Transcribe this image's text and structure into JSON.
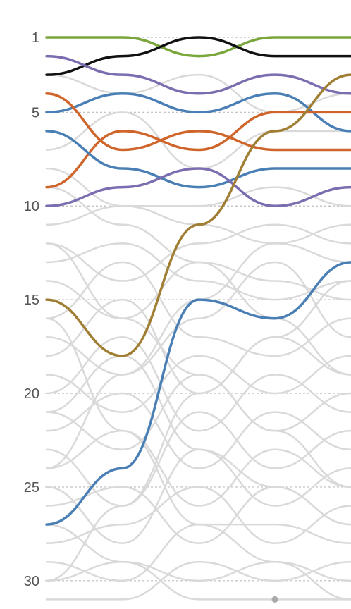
{
  "chart_data": {
    "type": "line",
    "subtype": "bump",
    "y_axis": {
      "reversed": true,
      "range": [
        0,
        30.5
      ],
      "ticks": [
        1,
        5,
        10,
        15,
        20,
        25,
        30
      ],
      "tick_labels": [
        "1",
        "5",
        "10",
        "15",
        "20",
        "25",
        "30"
      ]
    },
    "x": [
      1,
      2,
      3,
      4,
      5
    ],
    "grid": {
      "horizontal": true,
      "style": "dotted"
    },
    "highlighted_series": [
      {
        "color": "#7aa63c",
        "ranks": [
          1,
          1,
          2,
          1,
          1
        ]
      },
      {
        "color": "#111111",
        "ranks": [
          3,
          2,
          1,
          2,
          2
        ]
      },
      {
        "color": "#7b6db0",
        "ranks": [
          2,
          3,
          4,
          3,
          4
        ]
      },
      {
        "color": "#4a7fb5",
        "ranks": [
          5,
          4,
          5,
          4,
          6
        ]
      },
      {
        "color": "#d0652b",
        "ranks": [
          4,
          7,
          6,
          7,
          7
        ]
      },
      {
        "color": "#d0652b",
        "ranks": [
          9,
          6,
          7,
          5,
          5
        ]
      },
      {
        "color": "#4a7fb5",
        "ranks": [
          6,
          8,
          9,
          8,
          8
        ]
      },
      {
        "color": "#7b6db0",
        "ranks": [
          10,
          9,
          8,
          10,
          9
        ]
      },
      {
        "color": "#a07f34",
        "ranks": [
          15,
          18,
          11,
          6,
          3
        ]
      },
      {
        "color": "#4a7fb5",
        "ranks": [
          27,
          24,
          15,
          16,
          13
        ]
      }
    ],
    "background_series_color": "#d9d9d9",
    "background_series": [
      [
        3,
        4,
        3,
        5,
        4
      ],
      [
        7,
        5,
        8,
        6,
        6
      ],
      [
        8,
        10,
        10,
        9,
        10
      ],
      [
        11,
        10,
        11,
        12,
        11
      ],
      [
        12,
        14,
        12,
        11,
        12
      ],
      [
        13,
        12,
        14,
        15,
        14
      ],
      [
        14,
        16,
        13,
        14,
        15
      ],
      [
        16,
        13,
        17,
        18,
        16
      ],
      [
        17,
        19,
        16,
        13,
        17
      ],
      [
        18,
        15,
        20,
        17,
        19
      ],
      [
        19,
        21,
        18,
        20,
        18
      ],
      [
        20,
        17,
        22,
        19,
        21
      ],
      [
        21,
        23,
        19,
        22,
        20
      ],
      [
        22,
        20,
        24,
        21,
        23
      ],
      [
        23,
        26,
        21,
        24,
        22
      ],
      [
        24,
        22,
        26,
        23,
        25
      ],
      [
        25,
        28,
        23,
        26,
        24
      ],
      [
        26,
        25,
        28,
        25,
        27
      ],
      [
        28,
        27,
        25,
        28,
        26
      ],
      [
        29,
        30,
        27,
        27,
        28
      ],
      [
        30,
        29,
        30,
        29,
        30
      ],
      [
        31,
        31,
        29,
        30,
        29
      ],
      [
        27,
        29,
        31,
        31,
        31
      ],
      [
        12,
        16,
        19,
        22,
        25
      ],
      [
        24,
        19,
        15,
        12,
        13
      ],
      [
        30,
        26,
        20,
        17,
        14
      ],
      [
        16,
        22,
        27,
        29,
        31
      ],
      [
        9,
        11,
        13,
        16,
        19
      ],
      [
        21,
        18,
        23,
        25,
        27
      ]
    ],
    "point_markers": [
      {
        "x": 4,
        "rank": 31,
        "color": "#aaaaaa"
      }
    ]
  }
}
